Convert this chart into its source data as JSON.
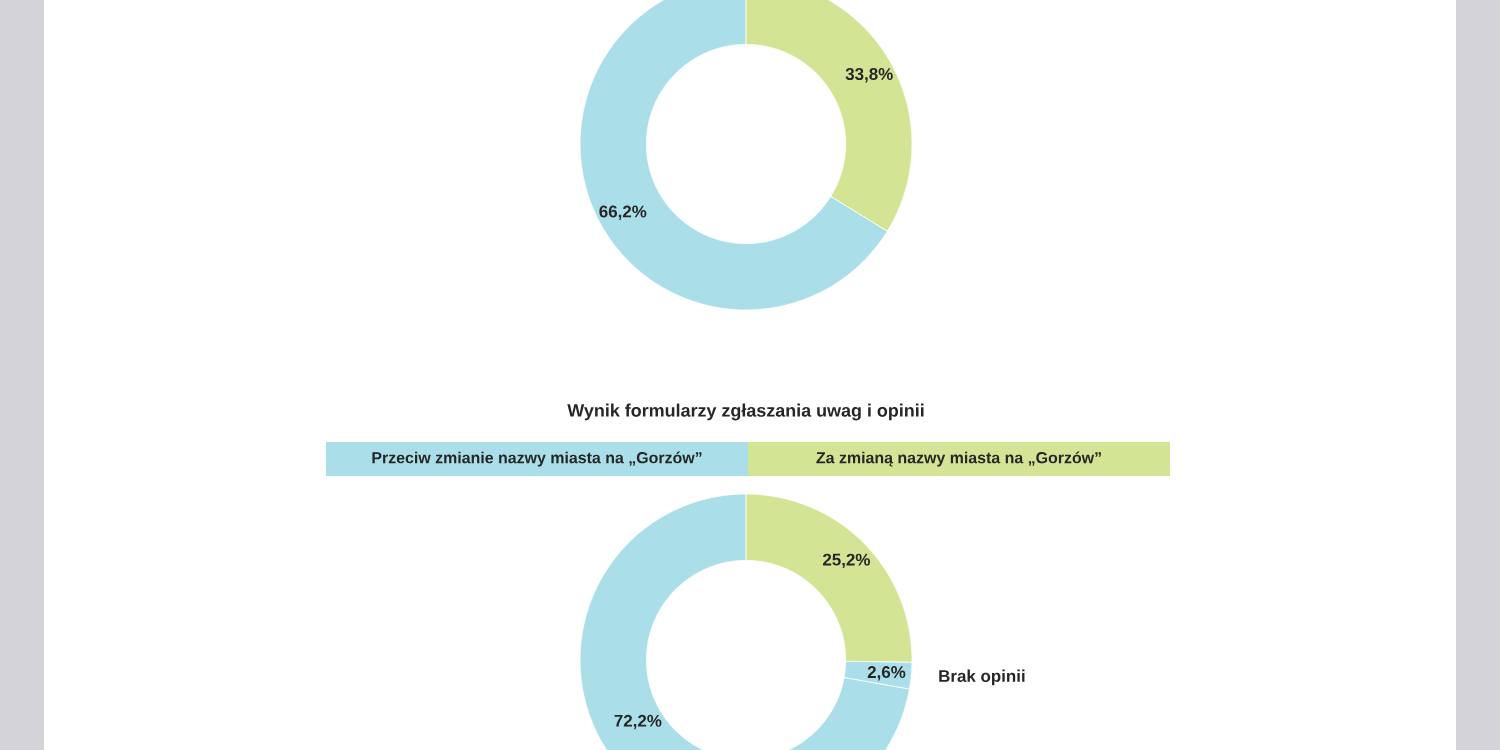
{
  "chart_data": [
    {
      "type": "donut",
      "categories": [
        null,
        null
      ],
      "values": [
        66.2,
        33.8
      ],
      "colors": [
        "#aadfe9",
        "#d4e495"
      ],
      "value_labels": [
        "66,2%",
        "33,8%"
      ]
    },
    {
      "type": "donut",
      "title": "Wynik formularzy zgłaszania uwag i opinii",
      "categories": [
        "Przeciw zmianie nazwy miasta na „Gorzów”",
        "Brak opinii",
        "Za zmianą nazwy miasta na „Gorzów”"
      ],
      "values": [
        72.2,
        2.6,
        25.2
      ],
      "colors": [
        "#aadfe9",
        "#aadfe9",
        "#d4e495"
      ],
      "value_labels": [
        "72,2%",
        "2,6%",
        "25,2%"
      ]
    }
  ]
}
